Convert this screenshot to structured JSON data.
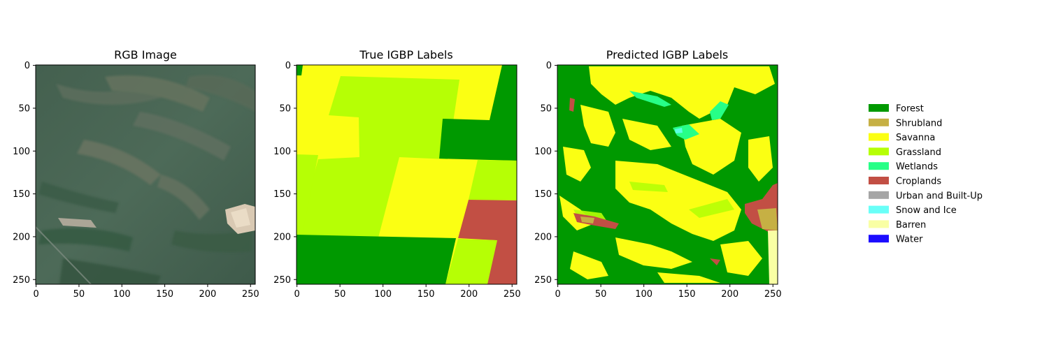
{
  "chart_data": [
    {
      "type": "heatmap",
      "title": "RGB Image",
      "xticks": [
        0,
        50,
        100,
        150,
        200,
        250
      ],
      "yticks": [
        0,
        50,
        100,
        150,
        200,
        250
      ],
      "xlim": [
        0,
        256
      ],
      "ylim": [
        256,
        0
      ],
      "content": "satellite RGB image (green/gray vegetation, bright patch near x=220-250, y=165-195)"
    },
    {
      "type": "heatmap",
      "title": "True IGBP Labels",
      "xticks": [
        0,
        50,
        100,
        150,
        200,
        250
      ],
      "yticks": [
        0,
        50,
        100,
        150,
        200,
        250
      ],
      "xlim": [
        0,
        256
      ],
      "ylim": [
        256,
        0
      ],
      "classes_present": [
        "Forest",
        "Savanna",
        "Grassland",
        "Croplands"
      ]
    },
    {
      "type": "heatmap",
      "title": "Predicted IGBP Labels",
      "xticks": [
        0,
        50,
        100,
        150,
        200,
        250
      ],
      "yticks": [
        0,
        50,
        100,
        150,
        200,
        250
      ],
      "xlim": [
        0,
        256
      ],
      "ylim": [
        256,
        0
      ],
      "classes_present": [
        "Forest",
        "Shrubland",
        "Savanna",
        "Grassland",
        "Wetlands",
        "Croplands",
        "Snow and Ice",
        "Barren"
      ]
    }
  ],
  "legend": {
    "placement": "right",
    "items": [
      {
        "label": "Forest",
        "color": "#009900"
      },
      {
        "label": "Shrubland",
        "color": "#c6b044"
      },
      {
        "label": "Savanna",
        "color": "#fbff13"
      },
      {
        "label": "Grassland",
        "color": "#b6ff05"
      },
      {
        "label": "Wetlands",
        "color": "#27ff87"
      },
      {
        "label": "Croplands",
        "color": "#c24f44"
      },
      {
        "label": "Urban and Built-Up",
        "color": "#a5a5a5"
      },
      {
        "label": "Snow and Ice",
        "color": "#69fff8"
      },
      {
        "label": "Barren",
        "color": "#f9ffa4"
      },
      {
        "label": "Water",
        "color": "#1c0dff"
      }
    ]
  }
}
